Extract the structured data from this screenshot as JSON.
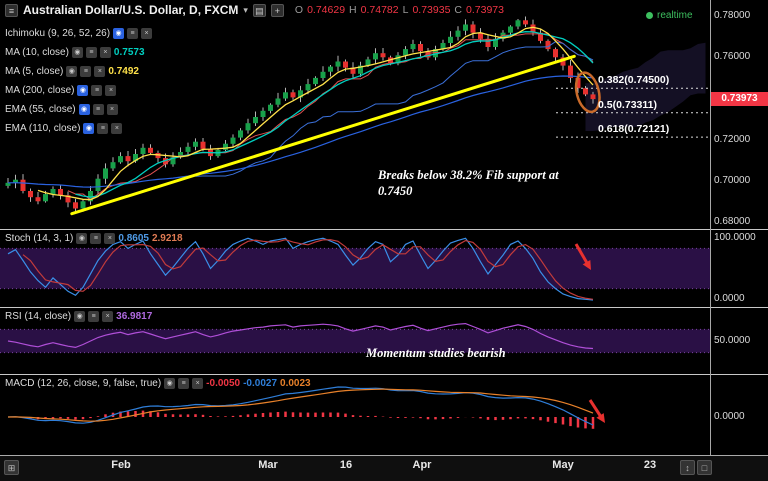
{
  "header": {
    "menu_icon": "≡",
    "symbol_title": "Australian Dollar/U.S. Dollar, D, FXCM",
    "ohlc": {
      "o_label": "O",
      "o_value": "0.74629",
      "h_label": "H",
      "h_value": "0.74782",
      "l_label": "L",
      "l_value": "0.73935",
      "c_label": "C",
      "c_value": "0.73973"
    },
    "realtime_label": "realtime"
  },
  "legend": {
    "indicators": [
      {
        "label": "Ichimoku (9, 26, 52, 26)",
        "value": ""
      },
      {
        "label": "MA (10, close)",
        "value": "0.7573"
      },
      {
        "label": "MA (5, close)",
        "value": "0.7492"
      },
      {
        "label": "MA (200, close)",
        "value": ""
      },
      {
        "label": "EMA (55, close)",
        "value": ""
      },
      {
        "label": "EMA (110, close)",
        "value": ""
      }
    ]
  },
  "panels": {
    "stoch": {
      "label": "Stoch (14, 3, 1)",
      "values": [
        "0.8605",
        "2.9218"
      ]
    },
    "rsi": {
      "label": "RSI (14, close)",
      "value": "36.9817"
    },
    "macd": {
      "label": "MACD (12, 26, close, 9, false, true)",
      "values": [
        "-0.0050",
        "-0.0027",
        "0.0023"
      ]
    }
  },
  "annotations": {
    "fib_break_line1": "Breaks below 38.2% Fib support at",
    "fib_break_line2": "0.7450",
    "momentum": "Momentum studies bearish"
  },
  "price_scale": {
    "last_price_label": "0.73973"
  },
  "colors": {
    "background": "#000000",
    "up_candle": "#18a04a",
    "down_candle": "#e8312f",
    "wick": "#b5b5b5",
    "ma10": "#00cfc0",
    "ma5": "#ffe24a",
    "ema55": "#2a62e0",
    "tenkan": "#e05050",
    "kijun": "#3a6fd8",
    "trendline": "#ffff00",
    "stoch_k": "#3a8fe8",
    "stoch_d": "#c23b3b",
    "rsi": "#b04fd8",
    "macd_line": "#2f7ed8",
    "macd_signal": "#e8812a",
    "macd_hist": "#f23645",
    "band_fill": "#2a1045",
    "band_line": "#7b3fa0",
    "price_tag": "#f23645",
    "realtime": "#3dbf5f",
    "arrow": "#e8312f",
    "ellipse": "#c96a2a"
  },
  "chart_data": {
    "type": "candlestick+indicators",
    "symbol": "AUD/USD",
    "interval": "D",
    "price": {
      "ylim": [
        0.678,
        0.784
      ],
      "y_ticks": [
        "0.78000",
        "0.76000",
        "0.74000",
        "0.72000",
        "0.70000",
        "0.68000"
      ],
      "last_price": 0.73973,
      "closes": [
        0.699,
        0.7005,
        0.695,
        0.692,
        0.69,
        0.6935,
        0.696,
        0.693,
        0.6895,
        0.6865,
        0.69,
        0.695,
        0.701,
        0.706,
        0.709,
        0.712,
        0.7095,
        0.713,
        0.716,
        0.7135,
        0.711,
        0.708,
        0.7115,
        0.714,
        0.7165,
        0.719,
        0.7155,
        0.712,
        0.715,
        0.718,
        0.721,
        0.7245,
        0.728,
        0.731,
        0.734,
        0.737,
        0.74,
        0.743,
        0.7405,
        0.744,
        0.747,
        0.75,
        0.753,
        0.7555,
        0.758,
        0.755,
        0.752,
        0.756,
        0.759,
        0.762,
        0.76,
        0.757,
        0.761,
        0.764,
        0.7665,
        0.763,
        0.76,
        0.764,
        0.767,
        0.77,
        0.773,
        0.776,
        0.772,
        0.769,
        0.765,
        0.769,
        0.772,
        0.775,
        0.778,
        0.776,
        0.772,
        0.768,
        0.764,
        0.76,
        0.756,
        0.75,
        0.745,
        0.742,
        0.73973
      ]
    },
    "overlays": {
      "ma10_last": 0.7573,
      "ma5_last": 0.7492,
      "trendline": {
        "from_index": 8.5,
        "from_price": 0.684,
        "to_index": 75.5,
        "to_price": 0.7605
      },
      "fib_levels": [
        {
          "label": "0.382(0.74500)",
          "price": 0.745
        },
        {
          "label": "0.5(0.73311)",
          "price": 0.73311
        },
        {
          "label": "0.618(0.72121)",
          "price": 0.72121
        }
      ]
    },
    "stoch": {
      "ylim": [
        0,
        100
      ],
      "bands": [
        20,
        80
      ],
      "axis_labels": [
        "100.0000",
        "0.0000"
      ],
      "last": [
        0.8605,
        2.9218
      ],
      "k": [
        72,
        78,
        62,
        45,
        32,
        22,
        36,
        26,
        16,
        10,
        22,
        42,
        62,
        76,
        86,
        90,
        80,
        86,
        91,
        72,
        56,
        40,
        52,
        66,
        80,
        90,
        72,
        50,
        62,
        76,
        86,
        91,
        95,
        91,
        86,
        91,
        93,
        95,
        80,
        86,
        90,
        93,
        95,
        91,
        86,
        70,
        55,
        66,
        80,
        90,
        86,
        60,
        70,
        86,
        91,
        70,
        50,
        62,
        76,
        88,
        92,
        95,
        80,
        60,
        42,
        56,
        70,
        86,
        91,
        80,
        65,
        45,
        30,
        20,
        12,
        8,
        5,
        4,
        3
      ]
    },
    "rsi": {
      "ylim": [
        0,
        100
      ],
      "bands": [
        30,
        70
      ],
      "axis_label": "50.0000",
      "last": 36.9817,
      "values": [
        50,
        48,
        45,
        42,
        40,
        44,
        47,
        44,
        41,
        39,
        44,
        50,
        56,
        60,
        63,
        65,
        61,
        64,
        66,
        62,
        58,
        54,
        57,
        60,
        63,
        66,
        61,
        57,
        60,
        64,
        67,
        69,
        71,
        73,
        74,
        76,
        77,
        78,
        74,
        76,
        77,
        78,
        79,
        78,
        76,
        71,
        67,
        70,
        73,
        76,
        74,
        69,
        72,
        75,
        77,
        72,
        68,
        71,
        74,
        77,
        79,
        80,
        75,
        70,
        64,
        68,
        72,
        75,
        78,
        75,
        70,
        63,
        57,
        52,
        47,
        43,
        40,
        38,
        37
      ]
    },
    "macd": {
      "params": [
        12,
        26,
        9
      ],
      "axis_label": "0.0000",
      "last": {
        "hist": -0.005,
        "macd": -0.0027,
        "signal": 0.0023
      }
    },
    "x_ticks": [
      {
        "label": "Feb",
        "index": 15
      },
      {
        "label": "Mar",
        "index": 34.7
      },
      {
        "label": "16",
        "index": 45
      },
      {
        "label": "Apr",
        "index": 55.2
      },
      {
        "label": "May",
        "index": 74
      },
      {
        "label": "23",
        "index": 85.6
      }
    ]
  }
}
